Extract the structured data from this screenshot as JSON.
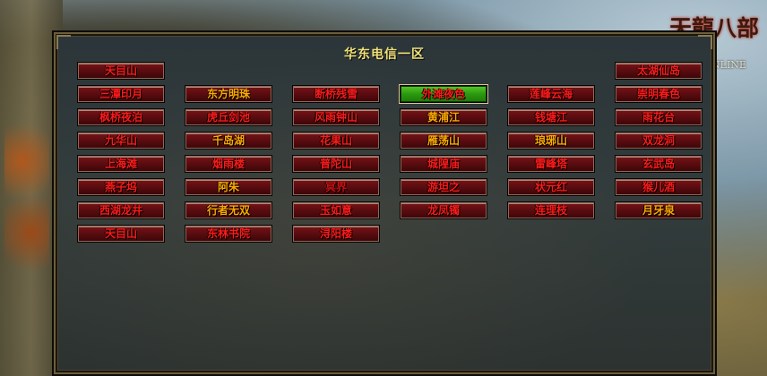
{
  "panel": {
    "title": "华东电信一区"
  },
  "colors": {
    "red": "#ff1a1a",
    "orange": "#ffa800",
    "selected_bg": "#2a9a10",
    "panel_bg": "#2c363a",
    "title": "#f0e27a"
  },
  "logo": {
    "text": "天龍八部",
    "subtitle": "ONLINE"
  },
  "servers": [
    [
      {
        "name": "天目山",
        "color": "red"
      },
      null,
      null,
      null,
      null,
      {
        "name": "太湖仙岛",
        "color": "red"
      }
    ],
    [
      {
        "name": "三潭印月",
        "color": "red"
      },
      {
        "name": "东方明珠",
        "color": "orange"
      },
      {
        "name": "断桥残雪",
        "color": "red"
      },
      {
        "name": "外滩夜色",
        "color": "red",
        "selected": true
      },
      {
        "name": "莲峰云海",
        "color": "red"
      },
      {
        "name": "崇明春色",
        "color": "red"
      }
    ],
    [
      {
        "name": "枫桥夜泊",
        "color": "red"
      },
      {
        "name": "虎丘剑池",
        "color": "red"
      },
      {
        "name": "风雨钟山",
        "color": "red"
      },
      {
        "name": "黄浦江",
        "color": "orange"
      },
      {
        "name": "钱塘江",
        "color": "red"
      },
      {
        "name": "雨花台",
        "color": "red"
      }
    ],
    [
      {
        "name": "九华山",
        "color": "red"
      },
      {
        "name": "千岛湖",
        "color": "orange"
      },
      {
        "name": "花果山",
        "color": "red"
      },
      {
        "name": "雁荡山",
        "color": "orange"
      },
      {
        "name": "琅琊山",
        "color": "orange"
      },
      {
        "name": "双龙洞",
        "color": "red"
      }
    ],
    [
      {
        "name": "上海滩",
        "color": "red"
      },
      {
        "name": "烟雨楼",
        "color": "red"
      },
      {
        "name": "普陀山",
        "color": "red"
      },
      {
        "name": "城隍庙",
        "color": "red"
      },
      {
        "name": "雷峰塔",
        "color": "red"
      },
      {
        "name": "玄武岛",
        "color": "red"
      }
    ],
    [
      {
        "name": "燕子坞",
        "color": "red"
      },
      {
        "name": "阿朱",
        "color": "orange"
      },
      {
        "name": "冥界",
        "color": "dim"
      },
      {
        "name": "游坦之",
        "color": "red"
      },
      {
        "name": "状元红",
        "color": "red"
      },
      {
        "name": "猴儿酒",
        "color": "red"
      }
    ],
    [
      {
        "name": "西湖龙井",
        "color": "red"
      },
      {
        "name": "行者无双",
        "color": "orange"
      },
      {
        "name": "玉如意",
        "color": "red"
      },
      {
        "name": "龙凤镯",
        "color": "red"
      },
      {
        "name": "连理枝",
        "color": "red"
      },
      {
        "name": "月牙泉",
        "color": "orange"
      }
    ],
    [
      {
        "name": "天目山",
        "color": "red"
      },
      {
        "name": "东林书院",
        "color": "red"
      },
      {
        "name": "浔阳楼",
        "color": "red"
      },
      null,
      null,
      null
    ]
  ]
}
